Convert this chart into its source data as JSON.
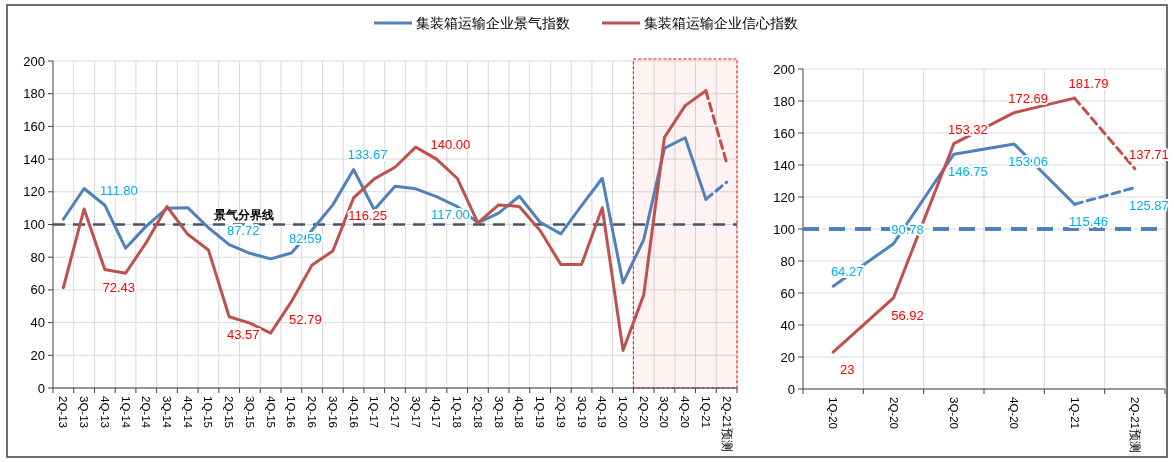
{
  "chart_data": [
    {
      "type": "line",
      "categories": [
        "2Q-13",
        "3Q-13",
        "4Q-13",
        "1Q-14",
        "2Q-14",
        "3Q-14",
        "4Q-14",
        "1Q-15",
        "2Q-15",
        "3Q-15",
        "4Q-15",
        "1Q-16",
        "2Q-16",
        "3Q-16",
        "4Q-16",
        "1Q-17",
        "2Q-17",
        "3Q-17",
        "4Q-17",
        "1Q-18",
        "2Q-18",
        "3Q-18",
        "4Q-18",
        "1Q-19",
        "2Q-19",
        "3Q-19",
        "4Q-19",
        "1Q-20",
        "2Q-20",
        "3Q-20",
        "4Q-20",
        "1Q-21",
        "2Q-21预测"
      ],
      "ylim": [
        0,
        200
      ],
      "yticks": [
        0,
        20,
        40,
        60,
        80,
        100,
        120,
        140,
        160,
        180,
        200
      ],
      "grid": true,
      "legend": "top",
      "marker": "none",
      "line_style": "solid",
      "ref_lines": [
        {
          "axis": "y",
          "value": 100,
          "label": "景气分界线",
          "color": "#44546a",
          "line_style": "dashed"
        }
      ],
      "bands": [
        {
          "axis": "x",
          "from": "2Q-20",
          "to": "2Q-21预测",
          "color": "#ff0000"
        }
      ],
      "series": [
        {
          "name": "集装箱运输企业景气指数",
          "color": "#4f81bd",
          "values": [
            103.2,
            122,
            111.8,
            85.5,
            99,
            110,
            110.3,
            98,
            87.72,
            82.4,
            79,
            82.59,
            96.6,
            112,
            133.67,
            109,
            123.4,
            121.8,
            117,
            111,
            101,
            107,
            117.3,
            101.4,
            94.3,
            111.6,
            128.3,
            64.27,
            90.78,
            146.75,
            153.06,
            115.46,
            null
          ],
          "value_labels": [
            null,
            null,
            "111.80",
            null,
            null,
            null,
            null,
            null,
            "87.72",
            null,
            null,
            "82.59",
            null,
            null,
            "133.67",
            null,
            null,
            null,
            "117.00",
            null,
            null,
            null,
            null,
            null,
            null,
            null,
            null,
            null,
            null,
            null,
            null,
            null,
            null
          ]
        },
        {
          "name": "集装箱运输企业信心指数",
          "color": "#c0504d",
          "values": [
            61.4,
            109.5,
            72.43,
            70.2,
            89,
            111,
            94,
            84.4,
            43.57,
            39.7,
            33.6,
            52.79,
            75.3,
            83.8,
            116.25,
            127.9,
            135,
            147.3,
            140,
            128.3,
            101,
            112,
            111,
            96.3,
            75.6,
            75.6,
            110.2,
            23,
            56.92,
            153.32,
            172.69,
            181.79,
            null
          ],
          "value_labels": [
            null,
            null,
            "72.43",
            null,
            null,
            null,
            null,
            null,
            "43.57",
            null,
            null,
            "52.79",
            null,
            null,
            "116.25",
            null,
            null,
            null,
            "140.00",
            null,
            null,
            null,
            null,
            null,
            null,
            null,
            null,
            null,
            null,
            null,
            null,
            null,
            null
          ]
        },
        {
          "color": "#4f81bd",
          "line_style": "dashed",
          "values": [
            null,
            null,
            null,
            null,
            null,
            null,
            null,
            null,
            null,
            null,
            null,
            null,
            null,
            null,
            null,
            null,
            null,
            null,
            null,
            null,
            null,
            null,
            null,
            null,
            null,
            null,
            null,
            null,
            null,
            null,
            null,
            115.46,
            125.87
          ]
        },
        {
          "color": "#c0504d",
          "line_style": "dashed",
          "values": [
            null,
            null,
            null,
            null,
            null,
            null,
            null,
            null,
            null,
            null,
            null,
            null,
            null,
            null,
            null,
            null,
            null,
            null,
            null,
            null,
            null,
            null,
            null,
            null,
            null,
            null,
            null,
            null,
            null,
            null,
            null,
            181.79,
            137.71
          ]
        }
      ]
    },
    {
      "type": "line",
      "categories": [
        "1Q-20",
        "2Q-20",
        "3Q-20",
        "4Q-20",
        "1Q-21",
        "2Q-21预测"
      ],
      "ylim": [
        0,
        200
      ],
      "yticks": [
        0,
        20,
        40,
        60,
        80,
        100,
        120,
        140,
        160,
        180,
        200
      ],
      "grid": true,
      "marker": "none",
      "line_style": "solid",
      "ref_lines": [
        {
          "axis": "y",
          "value": 100,
          "color": "#4f81bd",
          "line_style": "dashed"
        }
      ],
      "series": [
        {
          "color": "#4f81bd",
          "values": [
            64.27,
            90.78,
            146.75,
            153.06,
            115.46,
            null
          ],
          "value_labels": [
            "64.27",
            "90.78",
            "146.75",
            "153.06",
            "115.46",
            null
          ]
        },
        {
          "color": "#c0504d",
          "values": [
            23,
            56.92,
            153.32,
            172.69,
            181.79,
            null
          ],
          "value_labels": [
            "23",
            "56.92",
            "153.32",
            "172.69",
            "181.79",
            null
          ]
        },
        {
          "color": "#4f81bd",
          "line_style": "dashed",
          "values": [
            null,
            null,
            null,
            null,
            115.46,
            125.87
          ],
          "value_labels": [
            null,
            null,
            null,
            null,
            null,
            "125.87"
          ]
        },
        {
          "color": "#c0504d",
          "line_style": "dashed",
          "values": [
            null,
            null,
            null,
            null,
            181.79,
            137.71
          ],
          "value_labels": [
            null,
            null,
            null,
            null,
            null,
            "137.71"
          ]
        }
      ]
    }
  ]
}
